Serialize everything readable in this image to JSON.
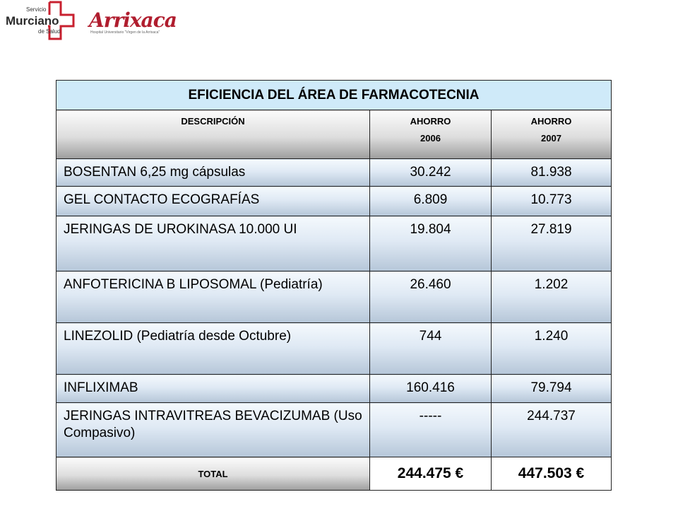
{
  "logos": {
    "sms": {
      "small_top": "Servicio",
      "big": "Murciano",
      "small_bottom": "de Salud"
    },
    "arrixaca": {
      "name": "Arrixaca",
      "subtitle": "Hospital Universitario \"Virgen de la Arrixaca\""
    },
    "colors": {
      "sms_cross": "#c8202f",
      "arrixaca": "#b01d2e"
    }
  },
  "table": {
    "title": "EFICIENCIA DEL ÁREA DE FARMACOTECNIA",
    "headers": {
      "description": "DESCRIPCIÓN",
      "col2_line1": "AHORRO",
      "col2_line2": "2006",
      "col3_line1": "AHORRO",
      "col3_line2": "2007"
    },
    "rows": [
      {
        "description": "BOSENTAN 6,25 mg cápsulas",
        "ahorro_2006": "30.242",
        "ahorro_2007": "81.938"
      },
      {
        "description": "GEL CONTACTO ECOGRAFÍAS",
        "ahorro_2006": "6.809",
        "ahorro_2007": "10.773"
      },
      {
        "description": "JERINGAS DE UROKINASA 10.000 UI",
        "ahorro_2006": "19.804",
        "ahorro_2007": "27.819"
      },
      {
        "description": "ANFOTERICINA B LIPOSOMAL (Pediatría)",
        "ahorro_2006": "26.460",
        "ahorro_2007": "1.202"
      },
      {
        "description": "LINEZOLID (Pediatría desde Octubre)",
        "ahorro_2006": "744",
        "ahorro_2007": "1.240"
      },
      {
        "description": "INFLIXIMAB",
        "ahorro_2006": "160.416",
        "ahorro_2007": "79.794"
      },
      {
        "description": "JERINGAS INTRAVITREAS BEVACIZUMAB (Uso Compasivo)",
        "ahorro_2006": "-----",
        "ahorro_2007": "244.737"
      }
    ],
    "total": {
      "label": "TOTAL",
      "ahorro_2006": "244.475 €",
      "ahorro_2007": "447.503 €"
    },
    "colors": {
      "title_bg": "#cfeaf9",
      "row_gradient_top": "#f4f9fd",
      "row_gradient_bottom": "#b5c6d8",
      "header_gradient_bottom": "#9e9e9e"
    }
  }
}
